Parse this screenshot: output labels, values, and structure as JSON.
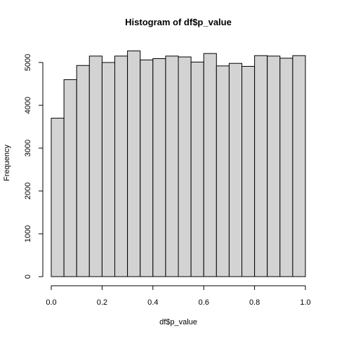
{
  "chart_data": {
    "type": "bar",
    "title": "Histogram of df$p_value",
    "xlabel": "df$p_value",
    "ylabel": "Frequency",
    "xlim": [
      0,
      1
    ],
    "ylim": [
      0,
      5400
    ],
    "bin_edges": [
      0.0,
      0.05,
      0.1,
      0.15,
      0.2,
      0.25,
      0.3,
      0.35,
      0.4,
      0.45,
      0.5,
      0.55,
      0.6,
      0.65,
      0.7,
      0.75,
      0.8,
      0.85,
      0.9,
      0.95,
      1.0
    ],
    "values": [
      3700,
      4600,
      4930,
      5150,
      5000,
      5150,
      5270,
      5060,
      5090,
      5150,
      5130,
      5010,
      5210,
      4920,
      4980,
      4910,
      5160,
      5150,
      5100,
      5160
    ],
    "x_ticks": [
      0.0,
      0.2,
      0.4,
      0.6,
      0.8,
      1.0
    ],
    "x_tick_labels": [
      "0.0",
      "0.2",
      "0.4",
      "0.6",
      "0.8",
      "1.0"
    ],
    "y_ticks": [
      0,
      1000,
      2000,
      3000,
      4000,
      5000
    ],
    "y_tick_labels": [
      "0",
      "1000",
      "2000",
      "3000",
      "4000",
      "5000"
    ],
    "bar_fill": "#d3d3d3",
    "bar_stroke": "#000000",
    "grid": false
  }
}
